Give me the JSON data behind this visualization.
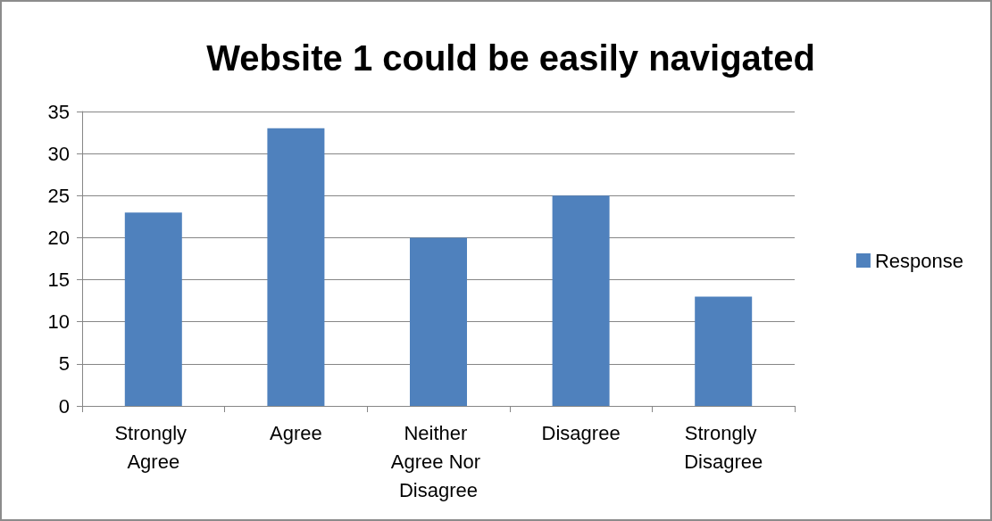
{
  "chart_data": {
    "type": "bar",
    "title": "Website 1 could be easily navigated",
    "categories": [
      "Strongly Agree",
      "Agree",
      "Neither Agree Nor Disagree",
      "Disagree",
      "Strongly Disagree"
    ],
    "series": [
      {
        "name": "Response",
        "color": "#4f81bd",
        "values": [
          23,
          33,
          20,
          25,
          13
        ]
      }
    ],
    "ylim": [
      0,
      35
    ],
    "yticks": [
      0,
      5,
      10,
      15,
      20,
      25,
      30,
      35
    ],
    "grid": "y",
    "legend": "right"
  }
}
